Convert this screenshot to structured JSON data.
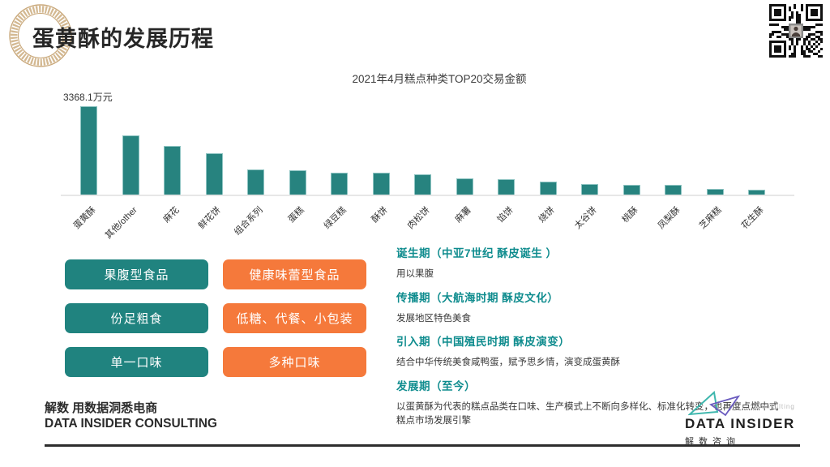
{
  "page": {
    "title": "蛋黄酥的发展历程"
  },
  "chart_data": {
    "type": "bar",
    "title": "2021年4月糕点种类TOP20交易金额",
    "max_value_label": "3368.1万元",
    "unit": "万元",
    "ylim": [
      0,
      3368.1
    ],
    "grid": false,
    "bar_color": "#27837f",
    "categories": [
      "蛋黄酥",
      "其他/other",
      "麻花",
      "鲜花饼",
      "组合系列",
      "蛋糕",
      "绿豆糕",
      "酥饼",
      "肉松饼",
      "麻薯",
      "馅饼",
      "烧饼",
      "太谷饼",
      "桃酥",
      "凤梨酥",
      "芝麻糕",
      "花生酥"
    ],
    "values": [
      3368.1,
      2285,
      1870,
      1600,
      990,
      960,
      895,
      885,
      830,
      670,
      630,
      550,
      465,
      420,
      415,
      280,
      245
    ]
  },
  "comparison": {
    "left_color": "#20837f",
    "right_color": "#f5793b",
    "left": [
      "果腹型食品",
      "份足粗食",
      "单一口味"
    ],
    "right": [
      "健康味蕾型食品",
      "低糖、代餐、小包装",
      "多种口味"
    ]
  },
  "timeline": [
    {
      "title": "诞生期（中亚7世纪  酥皮诞生 ）",
      "desc": "用以果腹"
    },
    {
      "title": "传播期（大航海时期 酥皮文化）",
      "desc": "发展地区特色美食"
    },
    {
      "title": "引入期（中国殖民时期 酥皮演变）",
      "desc": "结合中华传统美食咸鸭蛋，赋予思乡情，演变成蛋黄酥"
    },
    {
      "title": "发展期（至今）",
      "desc": "以蛋黄酥为代表的糕点品类在口味、生产模式上不断向多样化、标准化转变，也再度点燃中式糕点市场发展引擎"
    }
  ],
  "footer": {
    "slogan_cn": "解数 用数据洞悉电商",
    "slogan_en": "DATA INSIDER CONSULTING",
    "logo_consulting": "Consulting",
    "logo_title": "DATA INSIDER",
    "logo_sub": "解数咨询"
  }
}
